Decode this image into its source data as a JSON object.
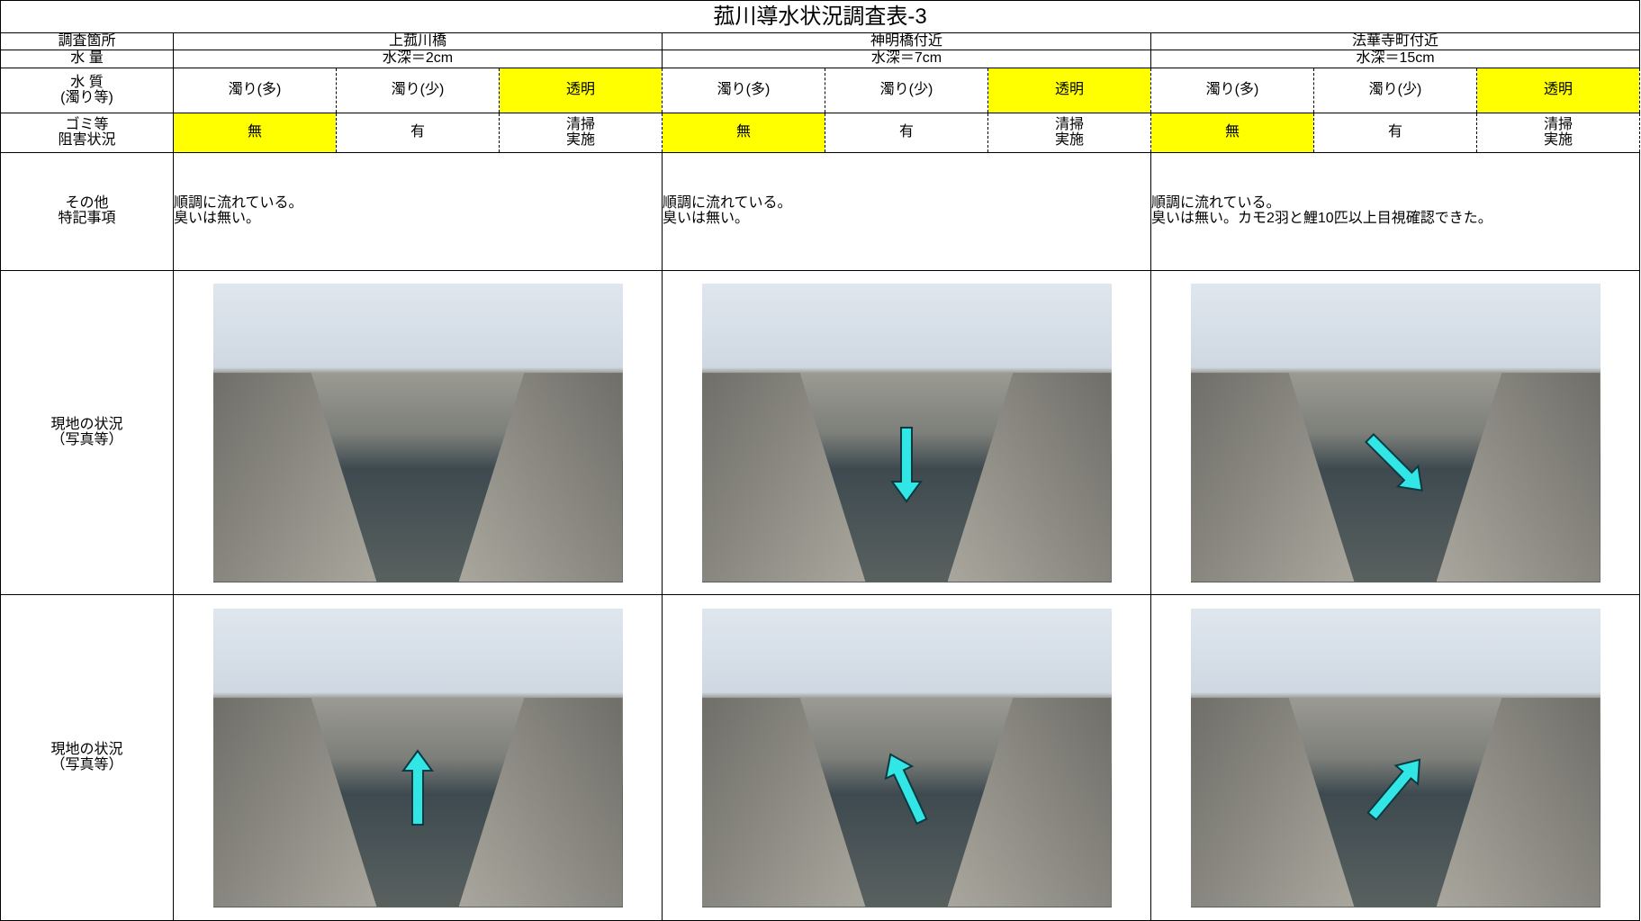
{
  "title": "菰川導水状況調査表-3",
  "labels": {
    "location": "調査箇所",
    "water_amount": "水 量",
    "water_quality": [
      "水 質",
      "(濁り等)"
    ],
    "obstruction": [
      "ゴミ等",
      "阻害状況"
    ],
    "notes": [
      "その他",
      "特記事項"
    ],
    "photos": [
      "現地の状況",
      "（写真等）"
    ]
  },
  "sites": [
    {
      "name": "上菰川橋",
      "water_amount": "水深＝2cm",
      "water_quality": {
        "options": [
          "濁り(多)",
          "濁り(少)",
          "透明"
        ],
        "selected": 2
      },
      "obstruction": {
        "options": [
          "無",
          "有",
          [
            "清掃",
            "実施"
          ]
        ],
        "selected": 0
      },
      "notes": [
        "順調に流れている。",
        "臭いは無い。"
      ]
    },
    {
      "name": "神明橋付近",
      "water_amount": "水深＝7cm",
      "water_quality": {
        "options": [
          "濁り(多)",
          "濁り(少)",
          "透明"
        ],
        "selected": 2
      },
      "obstruction": {
        "options": [
          "無",
          "有",
          [
            "清掃",
            "実施"
          ]
        ],
        "selected": 0
      },
      "notes": [
        "順調に流れている。",
        "臭いは無い。"
      ]
    },
    {
      "name": "法華寺町付近",
      "water_amount": "水深＝15cm",
      "water_quality": {
        "options": [
          "濁り(多)",
          "濁り(少)",
          "透明"
        ],
        "selected": 2
      },
      "obstruction": {
        "options": [
          "無",
          "有",
          [
            "清掃",
            "実施"
          ]
        ],
        "selected": 0
      },
      "notes": [
        "順調に流れている。",
        "臭いは無い。カモ2羽と鯉10匹以上目視確認できた。"
      ]
    }
  ]
}
